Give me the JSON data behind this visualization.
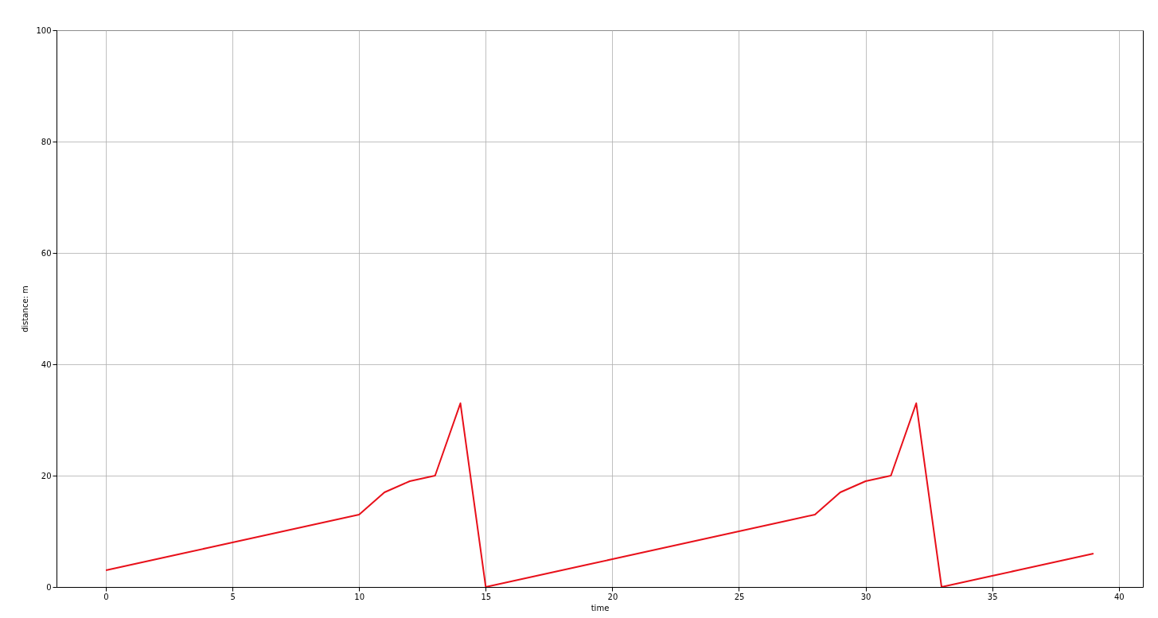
{
  "chart_data": {
    "type": "line",
    "xlabel": "time",
    "ylabel": "distance: m",
    "x": [
      0,
      1,
      2,
      3,
      4,
      5,
      6,
      7,
      8,
      9,
      10,
      11,
      12,
      13,
      14,
      15,
      16,
      17,
      18,
      19,
      20,
      21,
      22,
      23,
      24,
      25,
      26,
      27,
      28,
      29,
      30,
      31,
      32,
      33,
      34,
      35,
      36,
      37,
      38,
      39
    ],
    "series": [
      {
        "color": "#e8101a",
        "values": [
          3,
          4,
          5,
          6,
          7,
          8,
          9,
          10,
          11,
          12,
          13,
          17,
          19,
          20,
          33,
          0,
          1,
          2,
          3,
          4,
          5,
          6,
          7,
          8,
          9,
          10,
          11,
          12,
          13,
          17,
          19,
          20,
          33,
          0,
          1,
          2,
          3,
          4,
          5,
          6
        ]
      }
    ],
    "xlim": [
      -1.95,
      40.95
    ],
    "ylim": [
      0,
      100
    ],
    "xticks": [
      0,
      5,
      10,
      15,
      20,
      25,
      30,
      35,
      40
    ],
    "yticks": [
      0,
      20,
      40,
      60,
      80,
      100
    ],
    "grid": true,
    "marker": "none",
    "line_style": "solid"
  }
}
